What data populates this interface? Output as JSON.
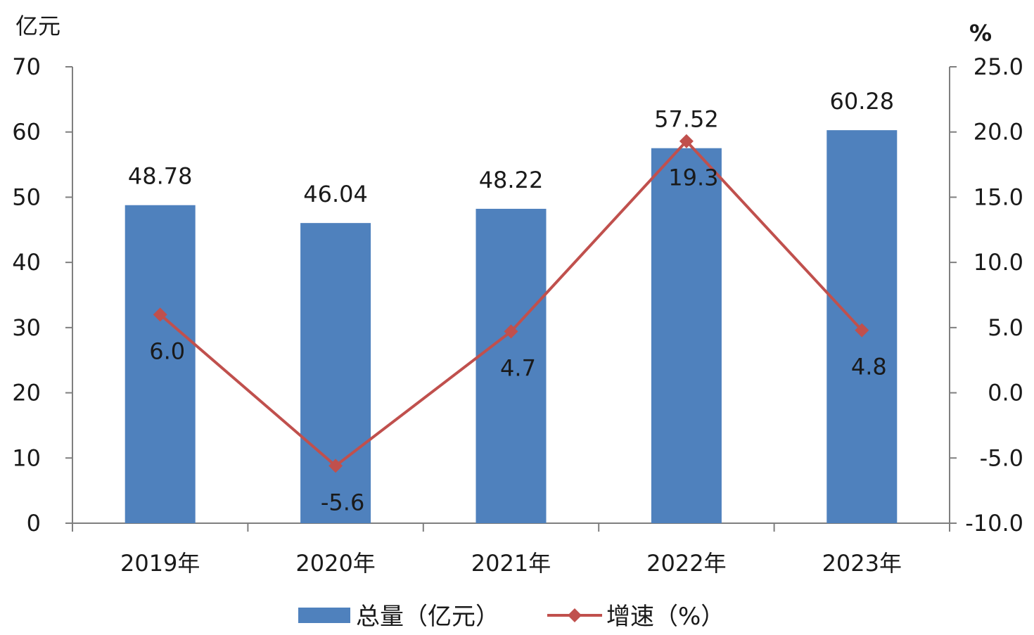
{
  "chart_data": {
    "type": "bar",
    "categories": [
      "2019年",
      "2020年",
      "2021年",
      "2022年",
      "2023年"
    ],
    "series": [
      {
        "name": "总量（亿元）",
        "type": "bar",
        "axis": "left",
        "values": [
          48.78,
          46.04,
          48.22,
          57.52,
          60.28
        ],
        "labels": [
          "48.78",
          "46.04",
          "48.22",
          "57.52",
          "60.28"
        ],
        "color": "#4f81bd"
      },
      {
        "name": "增速（%）",
        "type": "line",
        "axis": "right",
        "values": [
          6.0,
          -5.6,
          4.7,
          19.3,
          4.8
        ],
        "labels": [
          "6.0",
          "-5.6",
          "4.7",
          "19.3",
          "4.8"
        ],
        "color": "#c0504d"
      }
    ],
    "y_left": {
      "unit": "亿元",
      "min": 0,
      "max": 70,
      "ticks": [
        "0",
        "10",
        "20",
        "30",
        "40",
        "50",
        "60",
        "70"
      ]
    },
    "y_right": {
      "unit": "%",
      "min": -10,
      "max": 25,
      "ticks": [
        "-10.0",
        "-5.0",
        "0.0",
        "5.0",
        "10.0",
        "15.0",
        "20.0",
        "25.0"
      ]
    },
    "grid": false,
    "legend_position": "bottom"
  }
}
